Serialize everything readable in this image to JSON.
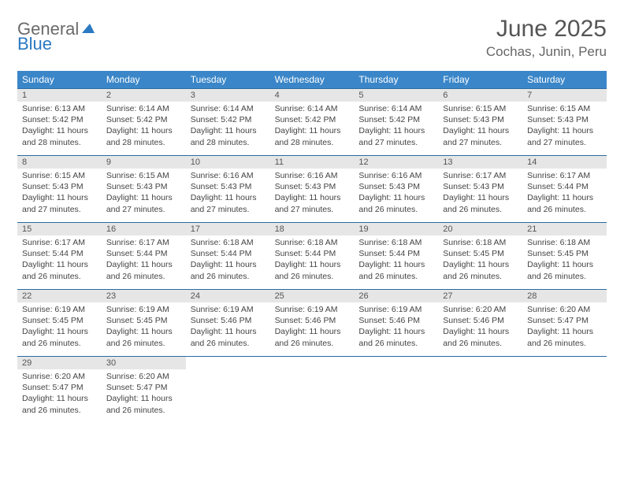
{
  "logo": {
    "word1": "General",
    "word2": "Blue"
  },
  "title": "June 2025",
  "location": "Cochas, Junin, Peru",
  "colors": {
    "header_bg": "#3a86c8",
    "week_border": "#2b6aa5",
    "daynum_bg": "#e6e6e6",
    "logo_gray": "#6a6a6a",
    "logo_blue": "#2b79c2"
  },
  "weekdays": [
    "Sunday",
    "Monday",
    "Tuesday",
    "Wednesday",
    "Thursday",
    "Friday",
    "Saturday"
  ],
  "weeks": [
    [
      {
        "n": "1",
        "sr": "6:13 AM",
        "ss": "5:42 PM",
        "dl": "11 hours and 28 minutes."
      },
      {
        "n": "2",
        "sr": "6:14 AM",
        "ss": "5:42 PM",
        "dl": "11 hours and 28 minutes."
      },
      {
        "n": "3",
        "sr": "6:14 AM",
        "ss": "5:42 PM",
        "dl": "11 hours and 28 minutes."
      },
      {
        "n": "4",
        "sr": "6:14 AM",
        "ss": "5:42 PM",
        "dl": "11 hours and 28 minutes."
      },
      {
        "n": "5",
        "sr": "6:14 AM",
        "ss": "5:42 PM",
        "dl": "11 hours and 27 minutes."
      },
      {
        "n": "6",
        "sr": "6:15 AM",
        "ss": "5:43 PM",
        "dl": "11 hours and 27 minutes."
      },
      {
        "n": "7",
        "sr": "6:15 AM",
        "ss": "5:43 PM",
        "dl": "11 hours and 27 minutes."
      }
    ],
    [
      {
        "n": "8",
        "sr": "6:15 AM",
        "ss": "5:43 PM",
        "dl": "11 hours and 27 minutes."
      },
      {
        "n": "9",
        "sr": "6:15 AM",
        "ss": "5:43 PM",
        "dl": "11 hours and 27 minutes."
      },
      {
        "n": "10",
        "sr": "6:16 AM",
        "ss": "5:43 PM",
        "dl": "11 hours and 27 minutes."
      },
      {
        "n": "11",
        "sr": "6:16 AM",
        "ss": "5:43 PM",
        "dl": "11 hours and 27 minutes."
      },
      {
        "n": "12",
        "sr": "6:16 AM",
        "ss": "5:43 PM",
        "dl": "11 hours and 26 minutes."
      },
      {
        "n": "13",
        "sr": "6:17 AM",
        "ss": "5:43 PM",
        "dl": "11 hours and 26 minutes."
      },
      {
        "n": "14",
        "sr": "6:17 AM",
        "ss": "5:44 PM",
        "dl": "11 hours and 26 minutes."
      }
    ],
    [
      {
        "n": "15",
        "sr": "6:17 AM",
        "ss": "5:44 PM",
        "dl": "11 hours and 26 minutes."
      },
      {
        "n": "16",
        "sr": "6:17 AM",
        "ss": "5:44 PM",
        "dl": "11 hours and 26 minutes."
      },
      {
        "n": "17",
        "sr": "6:18 AM",
        "ss": "5:44 PM",
        "dl": "11 hours and 26 minutes."
      },
      {
        "n": "18",
        "sr": "6:18 AM",
        "ss": "5:44 PM",
        "dl": "11 hours and 26 minutes."
      },
      {
        "n": "19",
        "sr": "6:18 AM",
        "ss": "5:44 PM",
        "dl": "11 hours and 26 minutes."
      },
      {
        "n": "20",
        "sr": "6:18 AM",
        "ss": "5:45 PM",
        "dl": "11 hours and 26 minutes."
      },
      {
        "n": "21",
        "sr": "6:18 AM",
        "ss": "5:45 PM",
        "dl": "11 hours and 26 minutes."
      }
    ],
    [
      {
        "n": "22",
        "sr": "6:19 AM",
        "ss": "5:45 PM",
        "dl": "11 hours and 26 minutes."
      },
      {
        "n": "23",
        "sr": "6:19 AM",
        "ss": "5:45 PM",
        "dl": "11 hours and 26 minutes."
      },
      {
        "n": "24",
        "sr": "6:19 AM",
        "ss": "5:46 PM",
        "dl": "11 hours and 26 minutes."
      },
      {
        "n": "25",
        "sr": "6:19 AM",
        "ss": "5:46 PM",
        "dl": "11 hours and 26 minutes."
      },
      {
        "n": "26",
        "sr": "6:19 AM",
        "ss": "5:46 PM",
        "dl": "11 hours and 26 minutes."
      },
      {
        "n": "27",
        "sr": "6:20 AM",
        "ss": "5:46 PM",
        "dl": "11 hours and 26 minutes."
      },
      {
        "n": "28",
        "sr": "6:20 AM",
        "ss": "5:47 PM",
        "dl": "11 hours and 26 minutes."
      }
    ],
    [
      {
        "n": "29",
        "sr": "6:20 AM",
        "ss": "5:47 PM",
        "dl": "11 hours and 26 minutes."
      },
      {
        "n": "30",
        "sr": "6:20 AM",
        "ss": "5:47 PM",
        "dl": "11 hours and 26 minutes."
      },
      {
        "empty": true
      },
      {
        "empty": true
      },
      {
        "empty": true
      },
      {
        "empty": true
      },
      {
        "empty": true
      }
    ]
  ],
  "labels": {
    "sunrise": "Sunrise:",
    "sunset": "Sunset:",
    "daylight": "Daylight:"
  }
}
